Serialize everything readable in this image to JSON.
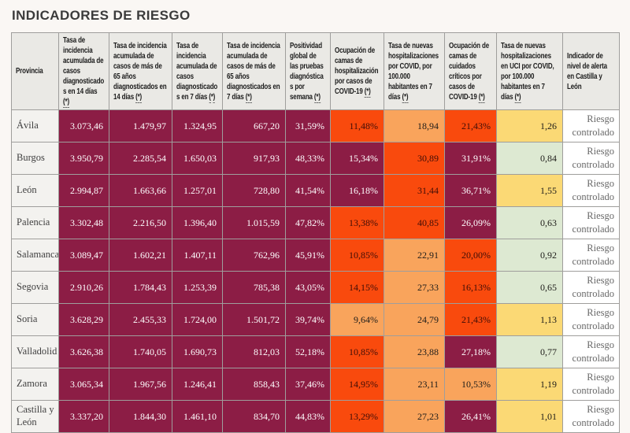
{
  "page": {
    "title": "INDICADORES DE RIESGO"
  },
  "colors": {
    "level_maroon": "#8c1d45",
    "level_red": "#f94a0d",
    "level_orange": "#f9a45c",
    "level_yellow": "#fbd975",
    "level_green": "#dde9d2",
    "header_bg": "#eae9e5",
    "province_bg": "#f3f2ef",
    "page_bg": "#faf7f4",
    "border": "#9f9e9c",
    "maroon_text": "#ffffff",
    "title_text": "#3b3b3b"
  },
  "table": {
    "columns": [
      {
        "label": "Provincia",
        "mark": ""
      },
      {
        "label": "Tasa de incidencia acumulada de casos diagnosticados en 14 días",
        "mark": "(*)"
      },
      {
        "label": "Tasa de incidencia acumulada de casos de más de 65 años diagnosticados en 14 días",
        "mark": "(*)"
      },
      {
        "label": "Tasa de incidencia acumulada de casos diagnosticados en 7 días",
        "mark": "(*)"
      },
      {
        "label": "Tasa de incidencia acumulada de casos de más de 65 años diagnosticados en 7 días",
        "mark": "(*)"
      },
      {
        "label": "Positividad global de las pruebas diagnósticas por semana",
        "mark": "(*)"
      },
      {
        "label": "Ocupación de camas de hospitalización por casos de COVID-19",
        "mark": "(*)"
      },
      {
        "label": "Tasa de nuevas hospitalizaciones por COVID, por 100.000 habitantes en 7 días",
        "mark": "(*)"
      },
      {
        "label": "Ocupación de camas de cuidados críticos por casos de COVID-19",
        "mark": "(*)"
      },
      {
        "label": "Tasa de nuevas hospitalizaciones en UCI por COVID, por 100.000 habitantes en 7 días",
        "mark": "(*)"
      },
      {
        "label": "Indicador de nivel de alerta en Castilla y León",
        "mark": ""
      }
    ],
    "rows": [
      {
        "province": "Ávila",
        "cells": [
          {
            "text": "3.073,46",
            "level": "maroon"
          },
          {
            "text": "1.479,97",
            "level": "maroon"
          },
          {
            "text": "1.324,95",
            "level": "maroon"
          },
          {
            "text": "667,20",
            "level": "maroon"
          },
          {
            "text": "31,59%",
            "level": "maroon"
          },
          {
            "text": "11,48%",
            "level": "red"
          },
          {
            "text": "18,94",
            "level": "orange"
          },
          {
            "text": "21,43%",
            "level": "red"
          },
          {
            "text": "1,26",
            "level": "yellow"
          }
        ],
        "alert": "Riesgo controlado"
      },
      {
        "province": "Burgos",
        "cells": [
          {
            "text": "3.950,79",
            "level": "maroon"
          },
          {
            "text": "2.285,54",
            "level": "maroon"
          },
          {
            "text": "1.650,03",
            "level": "maroon"
          },
          {
            "text": "917,93",
            "level": "maroon"
          },
          {
            "text": "48,33%",
            "level": "maroon"
          },
          {
            "text": "15,34%",
            "level": "maroon"
          },
          {
            "text": "30,89",
            "level": "red"
          },
          {
            "text": "31,91%",
            "level": "maroon"
          },
          {
            "text": "0,84",
            "level": "green"
          }
        ],
        "alert": "Riesgo controlado"
      },
      {
        "province": "León",
        "cells": [
          {
            "text": "2.994,87",
            "level": "maroon"
          },
          {
            "text": "1.663,66",
            "level": "maroon"
          },
          {
            "text": "1.257,01",
            "level": "maroon"
          },
          {
            "text": "728,80",
            "level": "maroon"
          },
          {
            "text": "41,54%",
            "level": "maroon"
          },
          {
            "text": "16,18%",
            "level": "maroon"
          },
          {
            "text": "31,44",
            "level": "red"
          },
          {
            "text": "36,71%",
            "level": "maroon"
          },
          {
            "text": "1,55",
            "level": "yellow"
          }
        ],
        "alert": "Riesgo controlado"
      },
      {
        "province": "Palencia",
        "cells": [
          {
            "text": "3.302,48",
            "level": "maroon"
          },
          {
            "text": "2.216,50",
            "level": "maroon"
          },
          {
            "text": "1.396,40",
            "level": "maroon"
          },
          {
            "text": "1.015,59",
            "level": "maroon"
          },
          {
            "text": "47,82%",
            "level": "maroon"
          },
          {
            "text": "13,38%",
            "level": "red"
          },
          {
            "text": "40,85",
            "level": "red"
          },
          {
            "text": "26,09%",
            "level": "maroon"
          },
          {
            "text": "0,63",
            "level": "green"
          }
        ],
        "alert": "Riesgo controlado"
      },
      {
        "province": "Salamanca",
        "cells": [
          {
            "text": "3.089,47",
            "level": "maroon"
          },
          {
            "text": "1.602,21",
            "level": "maroon"
          },
          {
            "text": "1.407,11",
            "level": "maroon"
          },
          {
            "text": "762,96",
            "level": "maroon"
          },
          {
            "text": "45,91%",
            "level": "maroon"
          },
          {
            "text": "10,85%",
            "level": "red"
          },
          {
            "text": "22,91",
            "level": "orange"
          },
          {
            "text": "20,00%",
            "level": "red"
          },
          {
            "text": "0,92",
            "level": "green"
          }
        ],
        "alert": "Riesgo controlado"
      },
      {
        "province": "Segovia",
        "cells": [
          {
            "text": "2.910,26",
            "level": "maroon"
          },
          {
            "text": "1.784,43",
            "level": "maroon"
          },
          {
            "text": "1.253,39",
            "level": "maroon"
          },
          {
            "text": "785,38",
            "level": "maroon"
          },
          {
            "text": "43,05%",
            "level": "maroon"
          },
          {
            "text": "14,15%",
            "level": "red"
          },
          {
            "text": "27,33",
            "level": "orange"
          },
          {
            "text": "16,13%",
            "level": "red"
          },
          {
            "text": "0,65",
            "level": "green"
          }
        ],
        "alert": "Riesgo controlado"
      },
      {
        "province": "Soria",
        "cells": [
          {
            "text": "3.628,29",
            "level": "maroon"
          },
          {
            "text": "2.455,33",
            "level": "maroon"
          },
          {
            "text": "1.724,00",
            "level": "maroon"
          },
          {
            "text": "1.501,72",
            "level": "maroon"
          },
          {
            "text": "39,74%",
            "level": "maroon"
          },
          {
            "text": "9,64%",
            "level": "orange"
          },
          {
            "text": "24,79",
            "level": "orange"
          },
          {
            "text": "21,43%",
            "level": "red"
          },
          {
            "text": "1,13",
            "level": "yellow"
          }
        ],
        "alert": "Riesgo controlado"
      },
      {
        "province": "Valladolid",
        "cells": [
          {
            "text": "3.626,38",
            "level": "maroon"
          },
          {
            "text": "1.740,05",
            "level": "maroon"
          },
          {
            "text": "1.690,73",
            "level": "maroon"
          },
          {
            "text": "812,03",
            "level": "maroon"
          },
          {
            "text": "52,18%",
            "level": "maroon"
          },
          {
            "text": "10,85%",
            "level": "red"
          },
          {
            "text": "23,88",
            "level": "orange"
          },
          {
            "text": "27,18%",
            "level": "maroon"
          },
          {
            "text": "0,77",
            "level": "green"
          }
        ],
        "alert": "Riesgo controlado"
      },
      {
        "province": "Zamora",
        "cells": [
          {
            "text": "3.065,34",
            "level": "maroon"
          },
          {
            "text": "1.967,56",
            "level": "maroon"
          },
          {
            "text": "1.246,41",
            "level": "maroon"
          },
          {
            "text": "858,43",
            "level": "maroon"
          },
          {
            "text": "37,46%",
            "level": "maroon"
          },
          {
            "text": "14,95%",
            "level": "red"
          },
          {
            "text": "23,11",
            "level": "orange"
          },
          {
            "text": "10,53%",
            "level": "orange"
          },
          {
            "text": "1,19",
            "level": "yellow"
          }
        ],
        "alert": "Riesgo controlado"
      },
      {
        "province": "Castilla y León",
        "cells": [
          {
            "text": "3.337,20",
            "level": "maroon"
          },
          {
            "text": "1.844,30",
            "level": "maroon"
          },
          {
            "text": "1.461,10",
            "level": "maroon"
          },
          {
            "text": "834,70",
            "level": "maroon"
          },
          {
            "text": "44,83%",
            "level": "maroon"
          },
          {
            "text": "13,29%",
            "level": "red"
          },
          {
            "text": "27,23",
            "level": "orange"
          },
          {
            "text": "26,41%",
            "level": "maroon"
          },
          {
            "text": "1,01",
            "level": "yellow"
          }
        ],
        "alert": "Riesgo controlado"
      }
    ]
  },
  "chart_data": {
    "type": "table",
    "title": "INDICADORES DE RIESGO",
    "columns": [
      "Provincia",
      "Tasa de incidencia acumulada de casos diagnosticados en 14 días (*)",
      "Tasa de incidencia acumulada de casos de más de 65 años diagnosticados en 14 días (*)",
      "Tasa de incidencia acumulada de casos diagnosticados en 7 días (*)",
      "Tasa de incidencia acumulada de casos de más de 65 años diagnosticados en 7 días (*)",
      "Positividad global de las pruebas diagnósticas por semana (*)",
      "Ocupación de camas de hospitalización por casos de COVID-19 (*)",
      "Tasa de nuevas hospitalizaciones por COVID, por 100.000 habitantes en 7 días (*)",
      "Ocupación de camas de cuidados críticos por casos de COVID-19 (*)",
      "Tasa de nuevas hospitalizaciones en UCI por COVID, por 100.000 habitantes en 7 días (*)",
      "Indicador de nivel de alerta en Castilla y León"
    ],
    "rows": [
      [
        "Ávila",
        "3.073,46",
        "1.479,97",
        "1.324,95",
        "667,20",
        "31,59%",
        "11,48%",
        "18,94",
        "21,43%",
        "1,26",
        "Riesgo controlado"
      ],
      [
        "Burgos",
        "3.950,79",
        "2.285,54",
        "1.650,03",
        "917,93",
        "48,33%",
        "15,34%",
        "30,89",
        "31,91%",
        "0,84",
        "Riesgo controlado"
      ],
      [
        "León",
        "2.994,87",
        "1.663,66",
        "1.257,01",
        "728,80",
        "41,54%",
        "16,18%",
        "31,44",
        "36,71%",
        "1,55",
        "Riesgo controlado"
      ],
      [
        "Palencia",
        "3.302,48",
        "2.216,50",
        "1.396,40",
        "1.015,59",
        "47,82%",
        "13,38%",
        "40,85",
        "26,09%",
        "0,63",
        "Riesgo controlado"
      ],
      [
        "Salamanca",
        "3.089,47",
        "1.602,21",
        "1.407,11",
        "762,96",
        "45,91%",
        "10,85%",
        "22,91",
        "20,00%",
        "0,92",
        "Riesgo controlado"
      ],
      [
        "Segovia",
        "2.910,26",
        "1.784,43",
        "1.253,39",
        "785,38",
        "43,05%",
        "14,15%",
        "27,33",
        "16,13%",
        "0,65",
        "Riesgo controlado"
      ],
      [
        "Soria",
        "3.628,29",
        "2.455,33",
        "1.724,00",
        "1.501,72",
        "39,74%",
        "9,64%",
        "24,79",
        "21,43%",
        "1,13",
        "Riesgo controlado"
      ],
      [
        "Valladolid",
        "3.626,38",
        "1.740,05",
        "1.690,73",
        "812,03",
        "52,18%",
        "10,85%",
        "23,88",
        "27,18%",
        "0,77",
        "Riesgo controlado"
      ],
      [
        "Zamora",
        "3.065,34",
        "1.967,56",
        "1.246,41",
        "858,43",
        "37,46%",
        "14,95%",
        "23,11",
        "10,53%",
        "1,19",
        "Riesgo controlado"
      ],
      [
        "Castilla y León",
        "3.337,20",
        "1.844,30",
        "1.461,10",
        "834,70",
        "44,83%",
        "13,29%",
        "27,23",
        "26,41%",
        "1,01",
        "Riesgo controlado"
      ]
    ],
    "cell_color_levels": {
      "maroon": "#8c1d45",
      "red": "#f94a0d",
      "orange": "#f9a45c",
      "yellow": "#fbd975",
      "green": "#dde9d2"
    },
    "notes": "Heatmap-styled risk table; first five value columns are all maroon (highest risk band); last column is alert level on white."
  }
}
